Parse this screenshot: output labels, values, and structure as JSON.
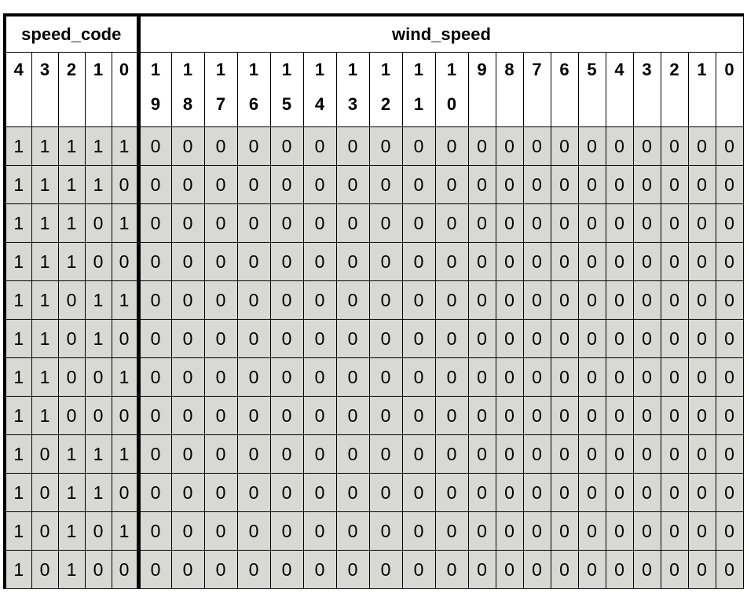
{
  "groups": [
    {
      "name": "speed_code",
      "bits": [
        "4",
        "3",
        "2",
        "1",
        "0"
      ]
    },
    {
      "name": "wind_speed",
      "bits": [
        "19",
        "18",
        "17",
        "16",
        "15",
        "14",
        "13",
        "12",
        "11",
        "10",
        "9",
        "8",
        "7",
        "6",
        "5",
        "4",
        "3",
        "2",
        "1",
        "0"
      ]
    }
  ],
  "rows": [
    {
      "speed_code": [
        "1",
        "1",
        "1",
        "1",
        "1"
      ],
      "wind_speed": [
        "0",
        "0",
        "0",
        "0",
        "0",
        "0",
        "0",
        "0",
        "0",
        "0",
        "0",
        "0",
        "0",
        "0",
        "0",
        "0",
        "0",
        "0",
        "0",
        "0"
      ]
    },
    {
      "speed_code": [
        "1",
        "1",
        "1",
        "1",
        "0"
      ],
      "wind_speed": [
        "0",
        "0",
        "0",
        "0",
        "0",
        "0",
        "0",
        "0",
        "0",
        "0",
        "0",
        "0",
        "0",
        "0",
        "0",
        "0",
        "0",
        "0",
        "0",
        "0"
      ]
    },
    {
      "speed_code": [
        "1",
        "1",
        "1",
        "0",
        "1"
      ],
      "wind_speed": [
        "0",
        "0",
        "0",
        "0",
        "0",
        "0",
        "0",
        "0",
        "0",
        "0",
        "0",
        "0",
        "0",
        "0",
        "0",
        "0",
        "0",
        "0",
        "0",
        "0"
      ]
    },
    {
      "speed_code": [
        "1",
        "1",
        "1",
        "0",
        "0"
      ],
      "wind_speed": [
        "0",
        "0",
        "0",
        "0",
        "0",
        "0",
        "0",
        "0",
        "0",
        "0",
        "0",
        "0",
        "0",
        "0",
        "0",
        "0",
        "0",
        "0",
        "0",
        "0"
      ]
    },
    {
      "speed_code": [
        "1",
        "1",
        "0",
        "1",
        "1"
      ],
      "wind_speed": [
        "0",
        "0",
        "0",
        "0",
        "0",
        "0",
        "0",
        "0",
        "0",
        "0",
        "0",
        "0",
        "0",
        "0",
        "0",
        "0",
        "0",
        "0",
        "0",
        "0"
      ]
    },
    {
      "speed_code": [
        "1",
        "1",
        "0",
        "1",
        "0"
      ],
      "wind_speed": [
        "0",
        "0",
        "0",
        "0",
        "0",
        "0",
        "0",
        "0",
        "0",
        "0",
        "0",
        "0",
        "0",
        "0",
        "0",
        "0",
        "0",
        "0",
        "0",
        "0"
      ]
    },
    {
      "speed_code": [
        "1",
        "1",
        "0",
        "0",
        "1"
      ],
      "wind_speed": [
        "0",
        "0",
        "0",
        "0",
        "0",
        "0",
        "0",
        "0",
        "0",
        "0",
        "0",
        "0",
        "0",
        "0",
        "0",
        "0",
        "0",
        "0",
        "0",
        "0"
      ]
    },
    {
      "speed_code": [
        "1",
        "1",
        "0",
        "0",
        "0"
      ],
      "wind_speed": [
        "0",
        "0",
        "0",
        "0",
        "0",
        "0",
        "0",
        "0",
        "0",
        "0",
        "0",
        "0",
        "0",
        "0",
        "0",
        "0",
        "0",
        "0",
        "0",
        "0"
      ]
    },
    {
      "speed_code": [
        "1",
        "0",
        "1",
        "1",
        "1"
      ],
      "wind_speed": [
        "0",
        "0",
        "0",
        "0",
        "0",
        "0",
        "0",
        "0",
        "0",
        "0",
        "0",
        "0",
        "0",
        "0",
        "0",
        "0",
        "0",
        "0",
        "0",
        "0"
      ]
    },
    {
      "speed_code": [
        "1",
        "0",
        "1",
        "1",
        "0"
      ],
      "wind_speed": [
        "0",
        "0",
        "0",
        "0",
        "0",
        "0",
        "0",
        "0",
        "0",
        "0",
        "0",
        "0",
        "0",
        "0",
        "0",
        "0",
        "0",
        "0",
        "0",
        "0"
      ]
    },
    {
      "speed_code": [
        "1",
        "0",
        "1",
        "0",
        "1"
      ],
      "wind_speed": [
        "0",
        "0",
        "0",
        "0",
        "0",
        "0",
        "0",
        "0",
        "0",
        "0",
        "0",
        "0",
        "0",
        "0",
        "0",
        "0",
        "0",
        "0",
        "0",
        "0"
      ]
    },
    {
      "speed_code": [
        "1",
        "0",
        "1",
        "0",
        "0"
      ],
      "wind_speed": [
        "0",
        "0",
        "0",
        "0",
        "0",
        "0",
        "0",
        "0",
        "0",
        "0",
        "0",
        "0",
        "0",
        "0",
        "0",
        "0",
        "0",
        "0",
        "0",
        "0"
      ]
    }
  ]
}
